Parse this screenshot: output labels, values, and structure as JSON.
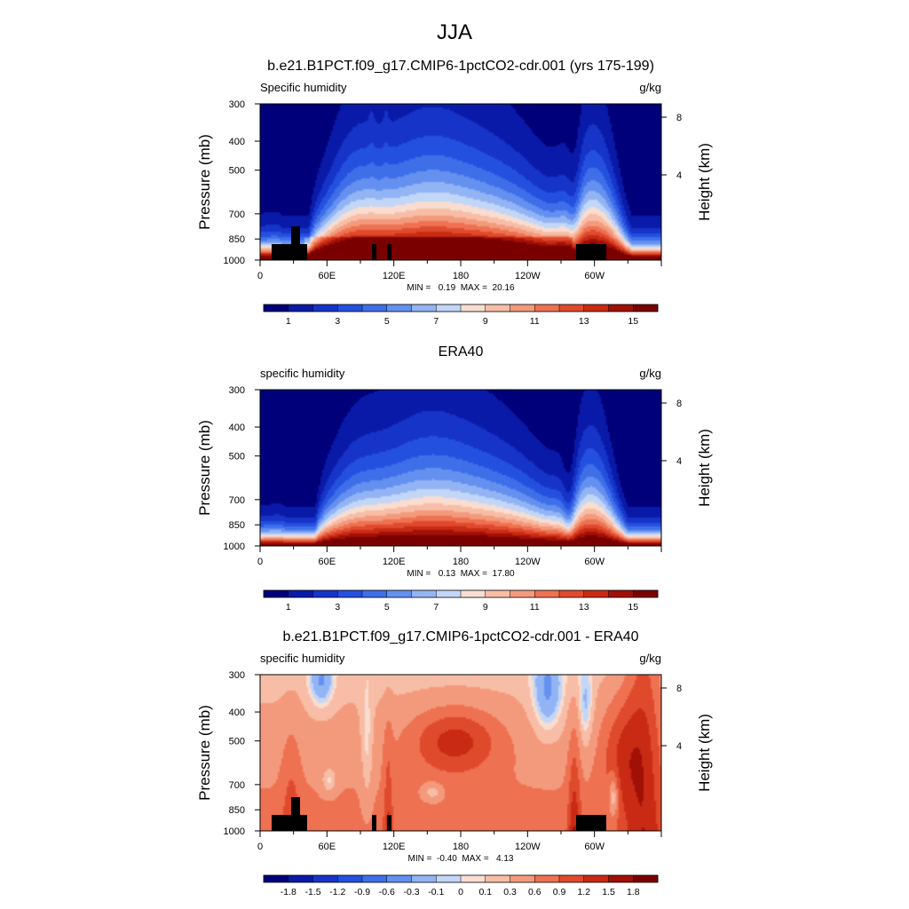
{
  "page": {
    "season": "JJA"
  },
  "chart_data": [
    {
      "type": "heatmap",
      "title": "b.e21.B1PCT.f09_g17.CMIP6-1pctCO2-cdr.001 (yrs 175-199)",
      "left_label": "Specific humidity",
      "right_label": "g/kg",
      "ylabel": "Pressure (mb)",
      "y2label": "Height (km)",
      "x_ticks": [
        "0",
        "60E",
        "120E",
        "180",
        "120W",
        "60W"
      ],
      "y_ticks": [
        "300",
        "400",
        "500",
        "700",
        "850",
        "1000"
      ],
      "y2_ticks": [
        "8",
        "4"
      ],
      "stats": "MIN =   0.19  MAX =  20.16",
      "min": 0.19,
      "max": 20.16,
      "colorbar_labels": [
        "1",
        "3",
        "5",
        "7",
        "9",
        "11",
        "13",
        "15"
      ],
      "levels": [
        1,
        2,
        3,
        4,
        5,
        6,
        7,
        8,
        9,
        10,
        11,
        12,
        13,
        14,
        15
      ],
      "field": "model"
    },
    {
      "type": "heatmap",
      "title": "ERA40",
      "left_label": "specific humidity",
      "right_label": "g/kg",
      "ylabel": "Pressure (mb)",
      "y2label": "Height (km)",
      "x_ticks": [
        "0",
        "60E",
        "120E",
        "180",
        "120W",
        "60W"
      ],
      "y_ticks": [
        "300",
        "400",
        "500",
        "700",
        "850",
        "1000"
      ],
      "y2_ticks": [
        "8",
        "4"
      ],
      "stats": "MIN =   0.13  MAX =  17.80",
      "min": 0.13,
      "max": 17.8,
      "colorbar_labels": [
        "1",
        "3",
        "5",
        "7",
        "9",
        "11",
        "13",
        "15"
      ],
      "levels": [
        1,
        2,
        3,
        4,
        5,
        6,
        7,
        8,
        9,
        10,
        11,
        12,
        13,
        14,
        15
      ],
      "field": "obs"
    },
    {
      "type": "heatmap",
      "title": "b.e21.B1PCT.f09_g17.CMIP6-1pctCO2-cdr.001 - ERA40",
      "left_label": "specific humidity",
      "right_label": "g/kg",
      "ylabel": "Pressure (mb)",
      "y2label": "Height (km)",
      "x_ticks": [
        "0",
        "60E",
        "120E",
        "180",
        "120W",
        "60W"
      ],
      "y_ticks": [
        "300",
        "400",
        "500",
        "700",
        "850",
        "1000"
      ],
      "y2_ticks": [
        "8",
        "4"
      ],
      "stats": "MIN =  -0.40  MAX =   4.13",
      "min": -0.4,
      "max": 4.13,
      "colorbar_labels": [
        "-1.8",
        "-1.5",
        "-1.2",
        "-0.9",
        "-0.6",
        "-0.3",
        "-0.1",
        "0",
        "0.1",
        "0.3",
        "0.6",
        "0.9",
        "1.2",
        "1.5",
        "1.8"
      ],
      "levels": [
        -1.8,
        -1.5,
        -1.2,
        -0.9,
        -0.6,
        -0.3,
        -0.1,
        0,
        0.1,
        0.3,
        0.6,
        0.9,
        1.2,
        1.5,
        1.8
      ],
      "field": "diff"
    }
  ],
  "palette": [
    "#00007a",
    "#0a1aa8",
    "#1634c8",
    "#2450e0",
    "#3f6fe8",
    "#6490f0",
    "#93b4f4",
    "#c2d6f8",
    "#f8ddd0",
    "#f8bda6",
    "#f49a7c",
    "#ee7152",
    "#e04a2c",
    "#c82a14",
    "#a01006",
    "#7a0000"
  ]
}
